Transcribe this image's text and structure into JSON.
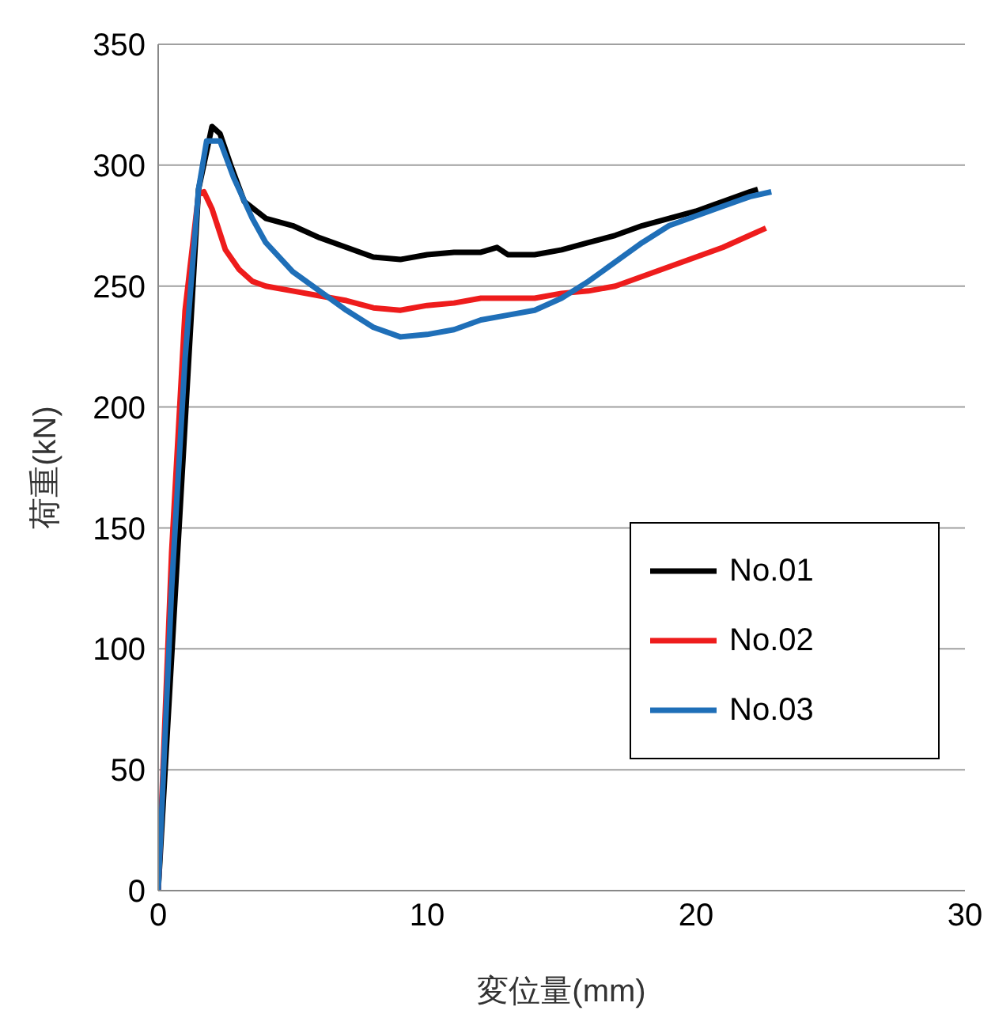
{
  "chart_data": {
    "type": "line",
    "xlabel": "変位量(mm)",
    "ylabel": "荷重(kN)",
    "xlim": [
      0,
      30
    ],
    "xticks": [
      0,
      10,
      20,
      30
    ],
    "ylim": [
      0,
      350
    ],
    "yticks": [
      0,
      50,
      100,
      150,
      200,
      250,
      300,
      350
    ],
    "grid": "y",
    "legend": "right",
    "marker": "none",
    "line_style": "solid",
    "series": [
      {
        "name": "No.01",
        "color": "#000000",
        "x": [
          0,
          1.5,
          2,
          2.3,
          2.7,
          3.2,
          4,
          5,
          6,
          7,
          8,
          9,
          10,
          11,
          12,
          12.6,
          13,
          14,
          15,
          16,
          17,
          18,
          19,
          20,
          21,
          22,
          22.3
        ],
        "values": [
          0,
          290,
          316,
          313,
          300,
          285,
          278,
          275,
          270,
          266,
          262,
          261,
          263,
          264,
          264,
          266,
          263,
          263,
          265,
          268,
          271,
          275,
          278,
          281,
          285,
          289,
          290
        ]
      },
      {
        "name": "No.02",
        "color": "#ee1c1c",
        "x": [
          0,
          0.5,
          1,
          1.5,
          1.7,
          2,
          2.5,
          3,
          3.5,
          4,
          5,
          6,
          7,
          8,
          9,
          10,
          11,
          12,
          13,
          14,
          15,
          16,
          17,
          18,
          19,
          20,
          21,
          22,
          22.6
        ],
        "values": [
          0,
          140,
          240,
          288,
          289,
          282,
          265,
          257,
          252,
          250,
          248,
          246,
          244,
          241,
          240,
          242,
          243,
          245,
          245,
          245,
          247,
          248,
          250,
          254,
          258,
          262,
          266,
          271,
          274
        ]
      },
      {
        "name": "No.03",
        "color": "#1f6fb8",
        "x": [
          0,
          0.5,
          1,
          1.5,
          1.8,
          2.3,
          2.8,
          3.5,
          4,
          5,
          6,
          7,
          8,
          9,
          10,
          11,
          12,
          13,
          14,
          15,
          16,
          17,
          18,
          19,
          20,
          21,
          22,
          22.8
        ],
        "values": [
          0,
          125,
          220,
          290,
          310,
          310,
          295,
          278,
          268,
          256,
          248,
          240,
          233,
          229,
          230,
          232,
          236,
          238,
          240,
          245,
          252,
          260,
          268,
          275,
          279,
          283,
          287,
          289
        ]
      }
    ]
  }
}
